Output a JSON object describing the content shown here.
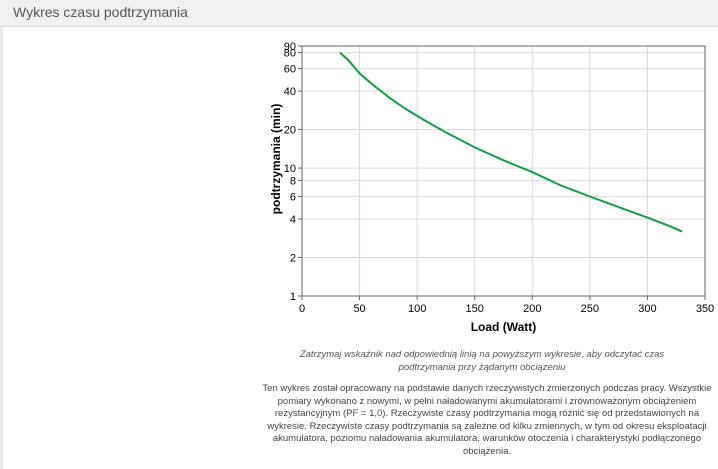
{
  "panel": {
    "title": "Wykres czasu podtrzymania"
  },
  "chart_data": {
    "type": "line",
    "title": "",
    "xlabel": "Load (Watt)",
    "ylabel": "podtrzymania (min)",
    "xlim": [
      0,
      350
    ],
    "ylim": [
      1,
      90
    ],
    "yscale": "log",
    "xticks": [
      0,
      50,
      100,
      150,
      200,
      250,
      300,
      350
    ],
    "yticks": [
      1,
      2,
      4,
      6,
      8,
      10,
      20,
      40,
      60,
      80,
      90
    ],
    "grid": true,
    "line_color": "#0f9d48",
    "x": [
      33,
      40,
      50,
      60,
      75,
      90,
      105,
      125,
      150,
      175,
      200,
      225,
      250,
      275,
      300,
      320,
      330
    ],
    "y": [
      80,
      70,
      55,
      46,
      36,
      29,
      24,
      19,
      14.5,
      11.5,
      9.3,
      7.3,
      6.0,
      4.95,
      4.1,
      3.5,
      3.2
    ]
  },
  "hint": "Zatrzymaj wskaźnik nad odpowiednią linią na powyższym wykresie, aby odczytać czas podtrzymania przy żądanym obciążeniu",
  "description": "Ten wykres został opracowany na podstawie danych rzeczywistych zmierzonych podczas pracy. Wszystkie pomiary wykonano z nowymi, w pełni naładowanymi akumulatorami i zrównoważonym obciążeniem rezystancyjnym (PF = 1,0). Rzeczywiste czasy podtrzymania mogą różnić się od przedstawionych na wykresie. Rzeczywiste czasy podtrzymania są zależne od kilku zmiennych, w tym od okresu eksploatacji akumulatora, poziomu naładowania akumulatora, warunków otoczenia i charakterystyki podłączonego obciążenia."
}
